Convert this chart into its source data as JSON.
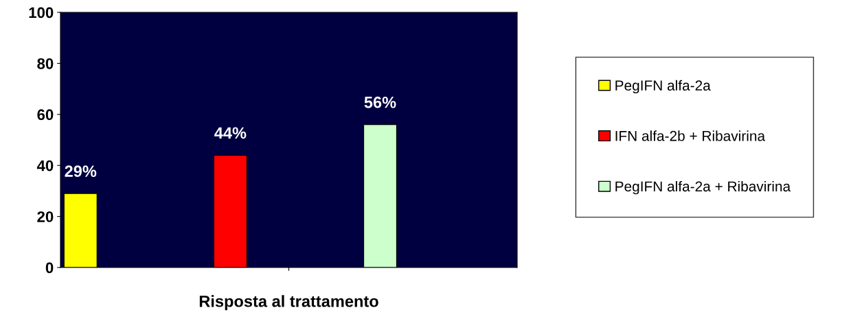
{
  "chart_data": {
    "type": "bar",
    "xlabel": "Risposta al trattamento",
    "categories": [
      null
    ],
    "series": [
      {
        "name": "PegIFN alfa-2a",
        "color": "#ffff00",
        "values": [
          29
        ],
        "value_labels": [
          "29%"
        ]
      },
      {
        "name": "IFN alfa-2b + Ribavirina",
        "color": "#ff0000",
        "values": [
          44
        ],
        "value_labels": [
          "44%"
        ]
      },
      {
        "name": "PegIFN alfa-2a + Ribavirina",
        "color": "#ccffcc",
        "values": [
          56
        ],
        "value_labels": [
          "56%"
        ]
      }
    ],
    "ylim": [
      0,
      100
    ],
    "yticks": [
      0,
      20,
      40,
      60,
      80,
      100
    ],
    "legend": "right",
    "grid": false
  }
}
